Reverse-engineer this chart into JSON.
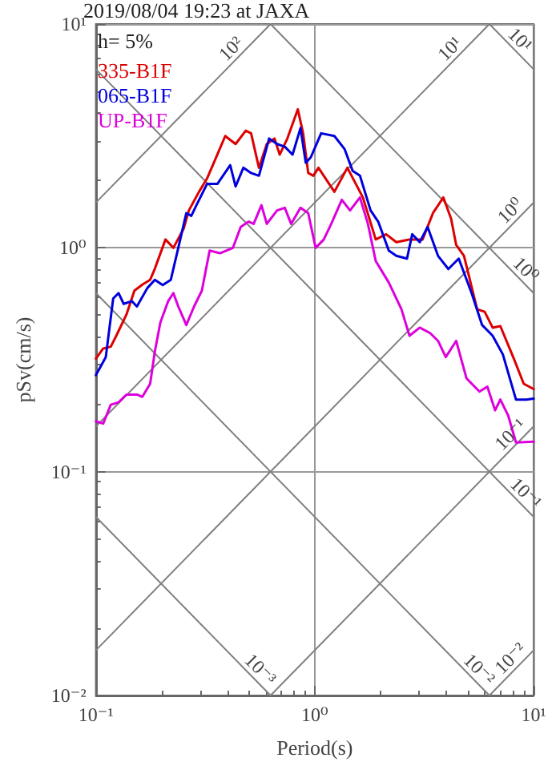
{
  "chart_data": {
    "type": "line",
    "title": "2019/08/04 19:23 at JAXA",
    "xlabel": "Period(s)",
    "ylabel": "pSv(cm/s)",
    "log": "xy",
    "xlim": [
      0.1,
      10
    ],
    "ylim": [
      0.01,
      10
    ],
    "xticks": [
      {
        "value": 0.1,
        "label": "10⁻¹"
      },
      {
        "value": 1,
        "label": "10⁰"
      },
      {
        "value": 10,
        "label": "10¹"
      }
    ],
    "yticks": [
      {
        "value": 0.01,
        "label": "10⁻²"
      },
      {
        "value": 0.1,
        "label": "10⁻¹"
      },
      {
        "value": 1,
        "label": "10⁰"
      },
      {
        "value": 10,
        "label": "10¹"
      }
    ],
    "grid": true,
    "legend": "top left",
    "marker": "none",
    "line_style": "solid",
    "annotations": [
      "h= 5%",
      {
        "text": "10²",
        "x": 0.45,
        "y": 7.16
      },
      {
        "text": "10¹",
        "x": 4.5,
        "y": 7.16
      },
      {
        "text": "10¹",
        "x": 8,
        "y": 7.85
      },
      {
        "text": "10⁰",
        "x": 8.5,
        "y": 1.353
      },
      {
        "text": "10⁰",
        "x": 8.5,
        "y": 0.739
      },
      {
        "text": "10⁻¹",
        "x": 8.5,
        "y": 0.1353
      },
      {
        "text": "10⁻¹",
        "x": 8.5,
        "y": 0.0739
      },
      {
        "text": "10⁻²",
        "x": 8.5,
        "y": 0.01353
      },
      {
        "text": "10⁻²",
        "x": 5.2,
        "y": 0.01208
      },
      {
        "text": "10⁻³",
        "x": 0.52,
        "y": 0.01208
      }
    ],
    "series": [
      {
        "name": "335-B1F",
        "color": "#dd0000",
        "x": [
          0.1,
          0.108,
          0.117,
          0.124,
          0.138,
          0.15,
          0.163,
          0.177,
          0.186,
          0.208,
          0.226,
          0.252,
          0.266,
          0.296,
          0.322,
          0.359,
          0.39,
          0.435,
          0.484,
          0.512,
          0.556,
          0.604,
          0.655,
          0.692,
          0.75,
          0.837,
          0.885,
          0.934,
          0.986,
          1.04,
          1.23,
          1.41,
          1.66,
          1.9,
          2.12,
          2.36,
          2.71,
          3.11,
          3.47,
          3.87,
          4.2,
          4.43,
          4.81,
          5.52,
          5.98,
          6.5,
          7.05,
          8.07,
          9.02,
          10
        ],
        "values": [
          0.32,
          0.355,
          0.362,
          0.405,
          0.504,
          0.644,
          0.685,
          0.72,
          0.807,
          1.09,
          1.0,
          1.22,
          1.47,
          1.78,
          2.04,
          2.61,
          3.16,
          2.91,
          3.34,
          3.25,
          2.28,
          2.91,
          3.08,
          2.61,
          3.08,
          4.16,
          3.25,
          2.16,
          2.1,
          2.28,
          1.78,
          2.28,
          1.68,
          1.09,
          1.15,
          1.06,
          1.09,
          1.09,
          1.43,
          1.68,
          1.35,
          1.03,
          0.921,
          0.532,
          0.518,
          0.44,
          0.447,
          0.325,
          0.247,
          0.234
        ]
      },
      {
        "name": "065-B1F",
        "color": "#0000dd",
        "x": [
          0.1,
          0.111,
          0.12,
          0.127,
          0.134,
          0.146,
          0.154,
          0.172,
          0.186,
          0.202,
          0.22,
          0.238,
          0.259,
          0.273,
          0.288,
          0.322,
          0.359,
          0.411,
          0.435,
          0.472,
          0.512,
          0.556,
          0.619,
          0.673,
          0.73,
          0.792,
          0.861,
          0.91,
          0.96,
          1.07,
          1.23,
          1.37,
          1.49,
          1.61,
          1.8,
          1.95,
          2.18,
          2.36,
          2.64,
          2.79,
          3.02,
          3.28,
          3.66,
          4.08,
          4.55,
          5.21,
          5.82,
          6.5,
          7.24,
          8.31,
          9.27,
          10
        ],
        "values": [
          0.27,
          0.325,
          0.594,
          0.628,
          0.562,
          0.578,
          0.547,
          0.662,
          0.72,
          0.682,
          0.72,
          1.0,
          1.43,
          1.39,
          1.55,
          1.93,
          1.93,
          2.34,
          1.88,
          2.28,
          2.16,
          2.1,
          3.08,
          2.91,
          2.83,
          2.61,
          3.43,
          2.4,
          2.54,
          3.25,
          3.16,
          2.76,
          2.21,
          2.1,
          1.47,
          1.31,
          0.972,
          0.921,
          0.895,
          1.15,
          1.06,
          1.24,
          0.921,
          0.804,
          0.895,
          0.628,
          0.452,
          0.405,
          0.334,
          0.21,
          0.21,
          0.212
        ]
      },
      {
        "name": "UP-B1F",
        "color": "#dd00dd",
        "x": [
          0.1,
          0.108,
          0.117,
          0.127,
          0.138,
          0.154,
          0.163,
          0.177,
          0.186,
          0.197,
          0.214,
          0.226,
          0.238,
          0.259,
          0.281,
          0.305,
          0.331,
          0.369,
          0.423,
          0.459,
          0.499,
          0.526,
          0.571,
          0.604,
          0.673,
          0.73,
          0.78,
          0.861,
          0.934,
          1.01,
          1.1,
          1.19,
          1.33,
          1.45,
          1.61,
          1.75,
          1.9,
          2.18,
          2.49,
          2.71,
          3.02,
          3.37,
          3.66,
          3.97,
          4.43,
          4.94,
          5.66,
          6.15,
          6.67,
          7.05,
          7.66,
          8.31,
          10
        ],
        "values": [
          0.168,
          0.164,
          0.199,
          0.204,
          0.221,
          0.221,
          0.216,
          0.247,
          0.344,
          0.463,
          0.578,
          0.628,
          0.547,
          0.452,
          0.547,
          0.644,
          0.972,
          0.946,
          1.0,
          1.24,
          1.31,
          1.28,
          1.55,
          1.28,
          1.47,
          1.51,
          1.28,
          1.51,
          1.43,
          1.0,
          1.09,
          1.28,
          1.64,
          1.47,
          1.68,
          1.28,
          0.873,
          0.7,
          0.532,
          0.405,
          0.44,
          0.416,
          0.384,
          0.325,
          0.384,
          0.261,
          0.228,
          0.24,
          0.188,
          0.21,
          0.178,
          0.135,
          0.136
        ]
      },
      {
        "color": "#808080",
        "x": [
          0.1,
          0.6283
        ],
        "values": [
          1.592,
          10
        ]
      },
      {
        "color": "#808080",
        "x": [
          0.1,
          6.283
        ],
        "values": [
          0.1592,
          10
        ]
      },
      {
        "color": "#808080",
        "x": [
          0.1,
          10
        ],
        "values": [
          0.01592,
          1.592
        ]
      },
      {
        "color": "#808080",
        "x": [
          0.6283,
          10
        ],
        "values": [
          0.01,
          0.1592
        ]
      },
      {
        "color": "#808080",
        "x": [
          6.283,
          10
        ],
        "values": [
          0.01,
          0.01592
        ]
      },
      {
        "color": "#808080",
        "x": [
          6.283,
          10
        ],
        "values": [
          10,
          6.283
        ]
      },
      {
        "color": "#808080",
        "x": [
          0.6283,
          10
        ],
        "values": [
          10,
          0.6283
        ]
      },
      {
        "color": "#808080",
        "x": [
          0.1,
          10
        ],
        "values": [
          6.283,
          0.06283
        ]
      },
      {
        "color": "#808080",
        "x": [
          0.1,
          6.283
        ],
        "values": [
          0.6283,
          0.01
        ]
      },
      {
        "color": "#808080",
        "x": [
          0.1,
          0.6283
        ],
        "values": [
          0.06283,
          0.01
        ]
      }
    ]
  }
}
